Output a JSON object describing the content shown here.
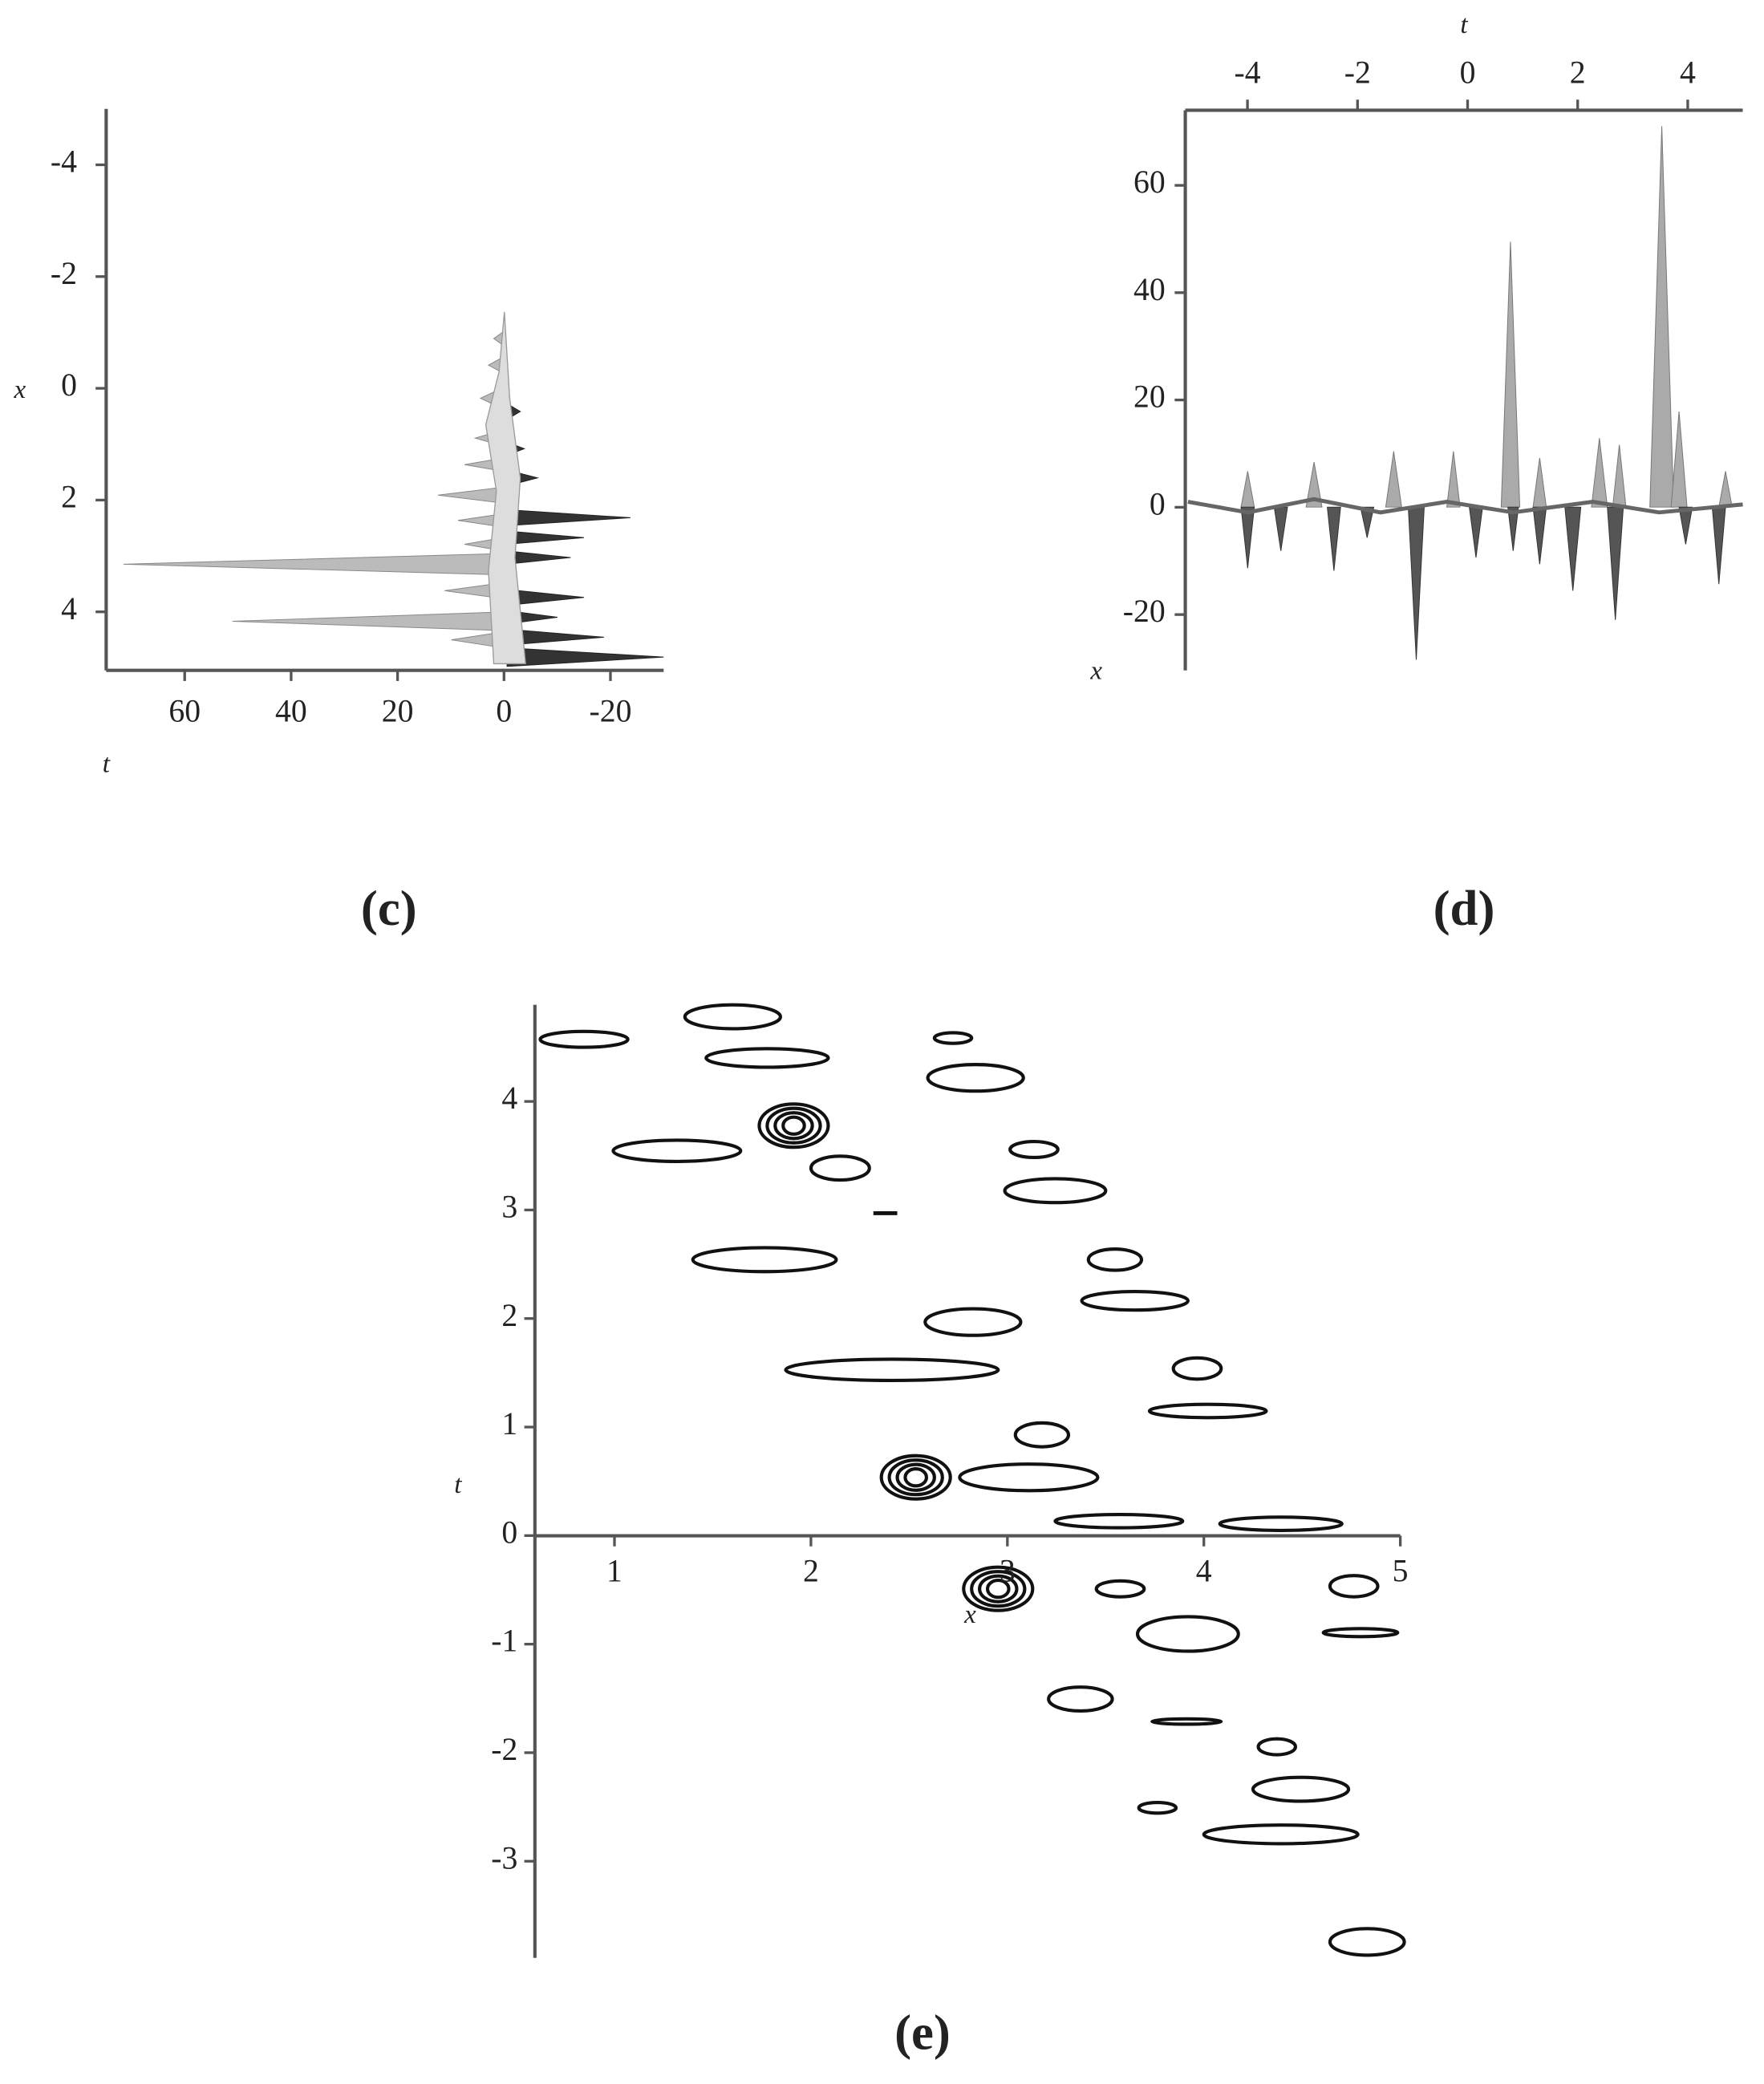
{
  "panels": [
    {
      "caption": "(c)",
      "vertical_axis": {
        "label": "x",
        "range": [
          -5,
          5
        ],
        "ticks": [
          -4,
          -2,
          0,
          2,
          4
        ]
      },
      "horizontal_axis": {
        "label": "t",
        "range": [
          74.75,
          -30
        ],
        "ticks": [
          60,
          40,
          20,
          0,
          -20
        ]
      }
    },
    {
      "caption": "(d)",
      "horizontal_axis": {
        "label": "t",
        "range": [
          -5.13,
          5
        ],
        "ticks": [
          -4,
          -2,
          0,
          2,
          4
        ]
      },
      "vertical_axis": {
        "label": "x",
        "range": [
          74,
          -30.4
        ],
        "ticks": [
          60,
          40,
          20,
          0,
          -20
        ]
      }
    },
    {
      "caption": "(e)",
      "horizontal_axis": {
        "label": "x",
        "range": [
          0.595,
          5
        ],
        "ticks": [
          1,
          2,
          3,
          4,
          5
        ]
      },
      "vertical_axis": {
        "label": "t",
        "range": [
          4.89,
          -3.89
        ],
        "ticks": [
          4,
          3,
          2,
          1,
          0,
          -1,
          -2,
          -3
        ]
      }
    }
  ]
}
